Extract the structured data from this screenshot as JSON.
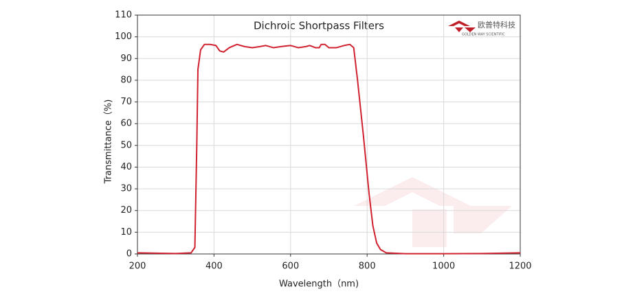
{
  "chart_data": {
    "type": "line",
    "title": "Dichroic Shortpass Filters",
    "x_label": "Wavelength（nm)",
    "y_label": "Transmittance（%)",
    "logo_text": "欧普特科技",
    "logo_subtext": "GOLDEN WAY SCIENTIFIC",
    "x": [
      200,
      300,
      340,
      350,
      355,
      358,
      365,
      375,
      390,
      405,
      415,
      425,
      440,
      460,
      480,
      500,
      520,
      535,
      555,
      575,
      600,
      620,
      640,
      650,
      665,
      675,
      680,
      690,
      700,
      720,
      740,
      755,
      765,
      775,
      790,
      805,
      815,
      825,
      835,
      850,
      900,
      1000,
      1100,
      1200
    ],
    "series": [
      {
        "name": "Transmittance",
        "color": "#d0202e",
        "values": [
          0.5,
          0.2,
          0.5,
          3,
          50,
          85,
          94,
          96.5,
          96.5,
          96,
          93.5,
          93,
          95,
          96.5,
          95.5,
          95,
          95.5,
          96,
          95,
          95.5,
          96,
          95,
          95.5,
          96,
          95,
          95,
          96.5,
          96.5,
          95,
          95,
          96,
          96.5,
          95,
          80,
          55,
          28,
          13,
          5,
          2,
          0.5,
          0.1,
          0.1,
          0.2,
          0.5
        ]
      }
    ],
    "xlim": [
      200,
      1200
    ],
    "xticks": [
      200,
      400,
      600,
      800,
      1000,
      1200
    ],
    "ylim": [
      0,
      110
    ],
    "yticks": [
      0,
      10,
      20,
      30,
      40,
      50,
      60,
      70,
      80,
      90,
      100,
      110
    ],
    "grid": true
  }
}
